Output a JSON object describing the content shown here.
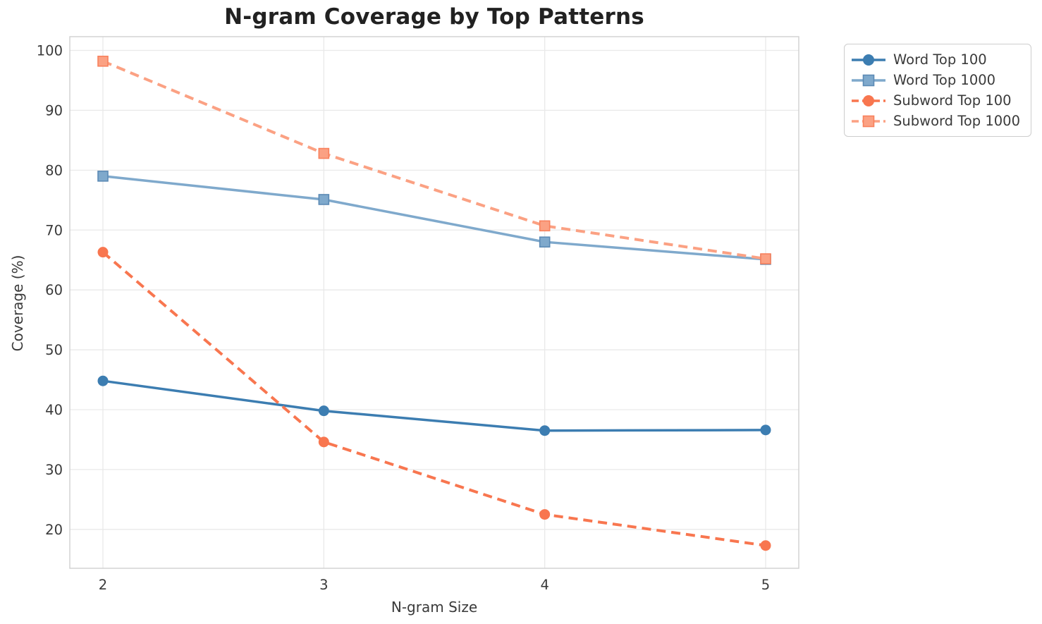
{
  "chart_data": {
    "type": "line",
    "title": "N-gram Coverage by Top Patterns",
    "xlabel": "N-gram Size",
    "ylabel": "Coverage (%)",
    "x": [
      2,
      3,
      4,
      5
    ],
    "xticks": [
      2,
      3,
      4,
      5
    ],
    "yticks": [
      20,
      30,
      40,
      50,
      60,
      70,
      80,
      90,
      100
    ],
    "xlim": [
      1.85,
      5.15
    ],
    "ylim": [
      13.5,
      102.3
    ],
    "grid": true,
    "legend_position": "outside-right",
    "series": [
      {
        "name": "Word Top 100",
        "values": [
          44.8,
          39.8,
          36.5,
          36.6
        ],
        "color": "#3C7DB1",
        "marker_edge": "#3C7DB1",
        "style": "solid",
        "marker": "circle"
      },
      {
        "name": "Word Top 1000",
        "values": [
          79.0,
          75.1,
          68.0,
          65.1
        ],
        "color": "#7FA9CC",
        "marker_edge": "#5C8AB5",
        "style": "solid",
        "marker": "square"
      },
      {
        "name": "Subword Top 100",
        "values": [
          66.3,
          34.6,
          22.5,
          17.3
        ],
        "color": "#F8764F",
        "marker_edge": "#F8764F",
        "style": "dashed",
        "marker": "circle"
      },
      {
        "name": "Subword Top 1000",
        "values": [
          98.2,
          82.8,
          70.7,
          65.2
        ],
        "color": "#FBA183",
        "marker_edge": "#F8815D",
        "style": "dashed",
        "marker": "square"
      }
    ],
    "style_colors": {
      "grid": "#E9E9E9",
      "spine": "#D0D0D0",
      "tick_text": "#3A3A3A",
      "title_text": "#212121"
    }
  }
}
